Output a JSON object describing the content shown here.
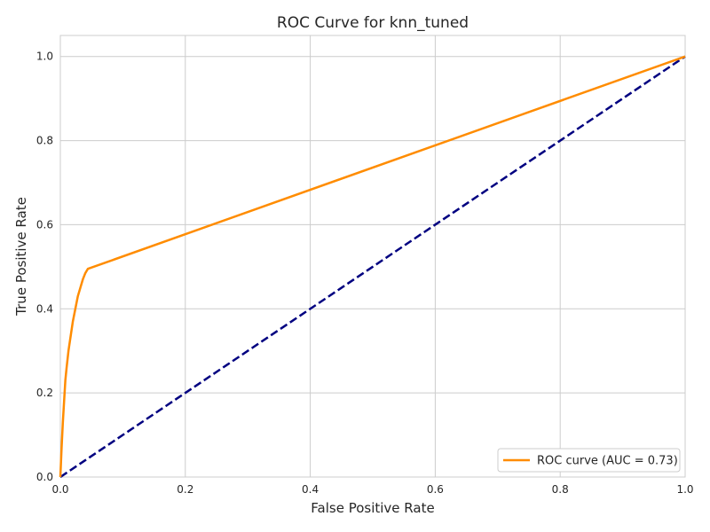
{
  "chart_data": {
    "type": "line",
    "title": "ROC Curve for knn_tuned",
    "xlabel": "False Positive Rate",
    "ylabel": "True Positive Rate",
    "xlim": [
      0.0,
      1.0
    ],
    "ylim": [
      0.0,
      1.05
    ],
    "xticks": [
      "0.0",
      "0.2",
      "0.4",
      "0.6",
      "0.8",
      "1.0"
    ],
    "yticks": [
      "0.0",
      "0.2",
      "0.4",
      "0.6",
      "0.8",
      "1.0"
    ],
    "grid": true,
    "legend_position": "bottom-right",
    "series": [
      {
        "name": "ROC curve (AUC = 0.73)",
        "color": "#ff8c00",
        "style": "solid",
        "x": [
          0.0,
          0.002,
          0.004,
          0.006,
          0.008,
          0.01,
          0.013,
          0.016,
          0.02,
          0.024,
          0.028,
          0.032,
          0.036,
          0.04,
          0.044,
          1.0
        ],
        "y": [
          0.0,
          0.07,
          0.13,
          0.18,
          0.23,
          0.26,
          0.3,
          0.33,
          0.37,
          0.4,
          0.43,
          0.45,
          0.47,
          0.485,
          0.495,
          1.0
        ]
      },
      {
        "color": "#000080",
        "style": "dashed",
        "x": [
          0.0,
          1.0
        ],
        "y": [
          0.0,
          1.0
        ]
      }
    ]
  }
}
